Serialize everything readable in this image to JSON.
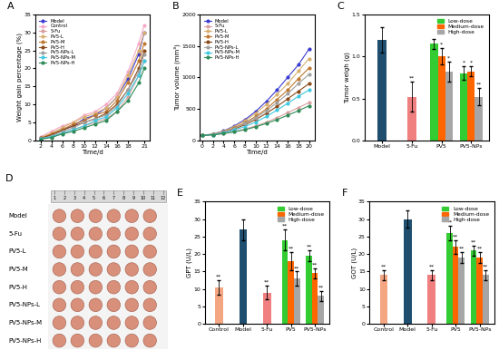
{
  "chart_data": [
    {
      "type": "line",
      "panel": "A",
      "x_label": "Time/d",
      "y_label": "Weight gain percentage (%)",
      "x": [
        2,
        4,
        6,
        8,
        10,
        12,
        14,
        16,
        18,
        20,
        21
      ],
      "xlim": [
        1,
        22
      ],
      "xticks": [
        2,
        4,
        6,
        8,
        10,
        12,
        14,
        16,
        18,
        21
      ],
      "ylim": [
        0,
        35
      ],
      "yticks": [
        0,
        5,
        10,
        15,
        20,
        25,
        30,
        35
      ],
      "marker": "circle",
      "legend": "upper left",
      "series": [
        {
          "name": "Model",
          "color": "#3b3bd1",
          "values": [
            0.5,
            1.5,
            3,
            4,
            6,
            7,
            9,
            12,
            17,
            24,
            30
          ]
        },
        {
          "name": "Control",
          "color": "#f5a8c8",
          "values": [
            1,
            2.5,
            4,
            5,
            7,
            8,
            10,
            13,
            19,
            27,
            32
          ]
        },
        {
          "name": "5-Fu",
          "color": "#d9a0a0",
          "values": [
            0.5,
            1,
            2,
            3,
            4,
            5,
            6,
            8,
            12,
            18,
            22
          ]
        },
        {
          "name": "PV5-L",
          "color": "#d8b070",
          "values": [
            0.8,
            2,
            3.5,
            5,
            6.5,
            7.5,
            9,
            12,
            18,
            25,
            30
          ]
        },
        {
          "name": "PV5-M",
          "color": "#c07830",
          "values": [
            0.5,
            1.8,
            3,
            4.5,
            5.5,
            7,
            8,
            11,
            16,
            22,
            27
          ]
        },
        {
          "name": "PV5-H",
          "color": "#8b4a1a",
          "values": [
            0.6,
            1.5,
            2.8,
            4,
            5,
            6,
            7.5,
            10,
            14,
            20,
            25
          ]
        },
        {
          "name": "PV5-NPs-L",
          "color": "#a0a0a0",
          "values": [
            0.4,
            1.2,
            2.5,
            3.5,
            5,
            6,
            7,
            9.5,
            14,
            19,
            24
          ]
        },
        {
          "name": "PV5-NPs-M",
          "color": "#40c8e0",
          "values": [
            0.5,
            1,
            2,
            3,
            4,
            5.5,
            6.5,
            9,
            13,
            18,
            22
          ]
        },
        {
          "name": "PV5-NPs-H",
          "color": "#2e8b57",
          "values": [
            0.3,
            0.8,
            1.8,
            2.5,
            3.5,
            4.5,
            5.5,
            8,
            11,
            16,
            20
          ]
        }
      ]
    },
    {
      "type": "line",
      "panel": "B",
      "x_label": "Time/d",
      "y_label": "Tumor volume (mm³)",
      "x": [
        0,
        2,
        4,
        6,
        8,
        10,
        12,
        14,
        16,
        18,
        20
      ],
      "xlim": [
        -0.5,
        21
      ],
      "xticks": [
        0,
        2,
        4,
        6,
        8,
        10,
        12,
        14,
        16,
        18,
        20
      ],
      "ylim": [
        0,
        2000
      ],
      "yticks": [
        0,
        500,
        1000,
        1500,
        2000
      ],
      "marker": "circle",
      "legend": "upper left",
      "series": [
        {
          "name": "Model",
          "color": "#3b3bd1",
          "values": [
            80,
            100,
            150,
            230,
            330,
            460,
            620,
            800,
            1000,
            1200,
            1450
          ]
        },
        {
          "name": "5-Fu",
          "color": "#d9a0a0",
          "values": [
            80,
            90,
            110,
            140,
            180,
            230,
            290,
            360,
            440,
            520,
            600
          ]
        },
        {
          "name": "PV5-L",
          "color": "#d8b070",
          "values": [
            80,
            100,
            145,
            220,
            310,
            430,
            570,
            730,
            900,
            1100,
            1300
          ]
        },
        {
          "name": "PV5-M",
          "color": "#c07830",
          "values": [
            80,
            95,
            135,
            200,
            280,
            380,
            500,
            650,
            800,
            980,
            1150
          ]
        },
        {
          "name": "PV5-H",
          "color": "#8b4a1a",
          "values": [
            80,
            95,
            125,
            180,
            250,
            330,
            430,
            540,
            660,
            780,
            900
          ]
        },
        {
          "name": "PV5-NPs-L",
          "color": "#a0a0a0",
          "values": [
            80,
            95,
            130,
            190,
            270,
            360,
            470,
            600,
            740,
            900,
            1050
          ]
        },
        {
          "name": "PV5-NPs-M",
          "color": "#40c8e0",
          "values": [
            80,
            90,
            120,
            165,
            220,
            290,
            380,
            480,
            590,
            700,
            800
          ]
        },
        {
          "name": "PV5-NPs-H",
          "color": "#2e8b57",
          "values": [
            80,
            88,
            108,
            135,
            170,
            215,
            270,
            330,
            400,
            470,
            550
          ]
        }
      ]
    },
    {
      "type": "bar",
      "panel": "C",
      "y_label": "Tumor weigh (g)",
      "categories": [
        "Model",
        "5-Fu",
        "PV5",
        "PV5-NPs"
      ],
      "ylim": [
        0.0,
        1.5
      ],
      "yticks": [
        0.0,
        0.5,
        1.0,
        1.5
      ],
      "legend": "upper right",
      "values": [
        1.2,
        0.52,
        null,
        null
      ],
      "errors": [
        0.15,
        0.18,
        null,
        null
      ],
      "colors": [
        "#1f4e6e",
        "#f08080",
        null,
        null
      ],
      "significance": [
        null,
        "**",
        null,
        null
      ],
      "series": [
        {
          "name": "Low-dose",
          "color": "#33cc33",
          "values": [
            null,
            null,
            1.15,
            0.8
          ],
          "errors": [
            null,
            null,
            0.06,
            0.08
          ],
          "significance": [
            null,
            null,
            null,
            "*"
          ]
        },
        {
          "name": "Medium-dose",
          "color": "#ff6600",
          "values": [
            null,
            null,
            1.0,
            0.82
          ],
          "errors": [
            null,
            null,
            0.1,
            0.06
          ],
          "significance": [
            null,
            null,
            "*",
            "*"
          ]
        },
        {
          "name": "High-dose",
          "color": "#a6a6a6",
          "values": [
            null,
            null,
            0.82,
            0.52
          ],
          "errors": [
            null,
            null,
            0.12,
            0.1
          ],
          "significance": [
            null,
            null,
            "*",
            "**"
          ]
        }
      ]
    },
    {
      "type": "image",
      "panel": "D",
      "categories": [
        "Model",
        "5-Fu",
        "PV5-L",
        "PV5-M",
        "PV5-H",
        "PV5-NPs-L",
        "PV5-NPs-M",
        "PV5-NPs-H"
      ],
      "ruler": [
        1,
        2,
        3,
        4,
        5,
        6,
        7,
        8,
        9,
        10,
        11,
        12
      ]
    },
    {
      "type": "bar",
      "panel": "E",
      "y_label": "GPT (U/L)",
      "categories": [
        "Control",
        "Model",
        "5-Fu",
        "PV5",
        "PV5-NPs"
      ],
      "ylim": [
        0,
        35
      ],
      "yticks": [
        0,
        5,
        10,
        15,
        20,
        25,
        30,
        35
      ],
      "legend": "upper right",
      "values": [
        10.5,
        27,
        9,
        null,
        null
      ],
      "errors": [
        2,
        3,
        2,
        null,
        null
      ],
      "colors": [
        "#f4a582",
        "#1f4e6e",
        "#f08080",
        null,
        null
      ],
      "significance": [
        "**",
        null,
        "**",
        null,
        null
      ],
      "series": [
        {
          "name": "Low-dose",
          "color": "#33cc33",
          "values": [
            null,
            null,
            null,
            24,
            19.5
          ],
          "errors": [
            null,
            null,
            null,
            3,
            1.5
          ],
          "significance": [
            null,
            null,
            null,
            "**",
            "**"
          ]
        },
        {
          "name": "Medium-dose",
          "color": "#ff6600",
          "values": [
            null,
            null,
            null,
            18,
            14.5
          ],
          "errors": [
            null,
            null,
            null,
            2.5,
            1.5
          ],
          "significance": [
            null,
            null,
            null,
            "**",
            "**"
          ]
        },
        {
          "name": "High-dose",
          "color": "#a6a6a6",
          "values": [
            null,
            null,
            null,
            13,
            8
          ],
          "errors": [
            null,
            null,
            null,
            2,
            1.5
          ],
          "significance": [
            null,
            null,
            null,
            "**",
            "**"
          ]
        }
      ]
    },
    {
      "type": "bar",
      "panel": "F",
      "y_label": "GOT (U/L)",
      "categories": [
        "Control",
        "Model",
        "5-Fu",
        "PV5",
        "PV5-NPs"
      ],
      "ylim": [
        0,
        35
      ],
      "yticks": [
        0,
        5,
        10,
        15,
        20,
        25,
        30,
        35
      ],
      "legend": "upper right",
      "values": [
        14,
        30,
        14,
        null,
        null
      ],
      "errors": [
        1.5,
        2.5,
        1.5,
        null,
        null
      ],
      "colors": [
        "#f4a582",
        "#1f4e6e",
        "#f08080",
        null,
        null
      ],
      "significance": [
        "**",
        null,
        "**",
        null,
        null
      ],
      "series": [
        {
          "name": "Low-dose",
          "color": "#33cc33",
          "values": [
            null,
            null,
            null,
            26,
            21
          ],
          "errors": [
            null,
            null,
            null,
            2,
            1.5
          ],
          "significance": [
            null,
            null,
            null,
            "**",
            "**"
          ]
        },
        {
          "name": "Medium-dose",
          "color": "#ff6600",
          "values": [
            null,
            null,
            null,
            22,
            19
          ],
          "errors": [
            null,
            null,
            null,
            2,
            1.5
          ],
          "significance": [
            null,
            null,
            null,
            "**",
            "**"
          ]
        },
        {
          "name": "High-dose",
          "color": "#a6a6a6",
          "values": [
            null,
            null,
            null,
            19,
            14
          ],
          "errors": [
            null,
            null,
            null,
            1.5,
            1.5
          ],
          "significance": [
            null,
            null,
            null,
            "**",
            "**"
          ]
        }
      ]
    }
  ]
}
